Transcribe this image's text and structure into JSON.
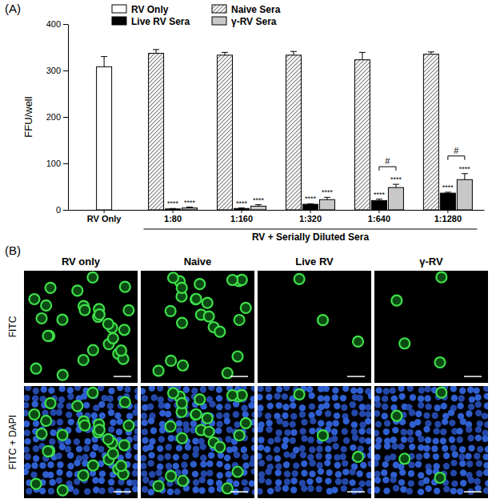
{
  "chart_data": {
    "type": "bar",
    "title": "(A)",
    "categories": [
      "RV Only",
      "1:80",
      "1:160",
      "1:320",
      "1:640",
      "1:1280"
    ],
    "ylabel": "FFU/well",
    "x_group": {
      "label": "RV + Serially Diluted Sera",
      "categories": [
        "1:80",
        "1:160",
        "1:320",
        "1:640",
        "1:1280"
      ]
    },
    "ylim": [
      0,
      400
    ],
    "yticks": [
      0,
      100,
      200,
      300,
      400
    ],
    "grid": false,
    "legend": "top",
    "series": [
      {
        "name": "RV Only",
        "color": "#ffffff",
        "values": [
          308,
          null,
          null,
          null,
          null,
          null
        ],
        "errors": [
          22,
          null,
          null,
          null,
          null,
          null
        ]
      },
      {
        "name": "Naive Sera",
        "color": "#7f7f7f",
        "line_style": "hatched",
        "values": [
          null,
          337,
          333,
          333,
          323,
          335
        ],
        "errors": [
          null,
          8,
          6,
          8,
          16,
          5
        ]
      },
      {
        "name": "Live RV Sera",
        "color": "#000000",
        "values": [
          null,
          2,
          3,
          12,
          20,
          36
        ],
        "errors": [
          null,
          1,
          1,
          1,
          3,
          2
        ],
        "significance": "****"
      },
      {
        "name": "γ-RV Sera",
        "color": "#c8c8c8",
        "values": [
          null,
          4,
          8,
          22,
          48,
          65
        ],
        "errors": [
          null,
          2,
          3,
          5,
          7,
          13
        ],
        "significance": "****"
      }
    ],
    "comparisons": [
      {
        "label": "#",
        "category": "1:640",
        "series": [
          "Live RV Sera",
          "γ-RV Sera"
        ]
      },
      {
        "label": "#",
        "category": "1:1280",
        "series": [
          "Live RV Sera",
          "γ-RV Sera"
        ]
      }
    ]
  },
  "panel_b": {
    "label": "(B)",
    "columns": [
      "RV only",
      "Naive",
      "Live RV",
      "γ-RV"
    ],
    "rows": [
      "FITC",
      "FITC + DAPI"
    ]
  }
}
